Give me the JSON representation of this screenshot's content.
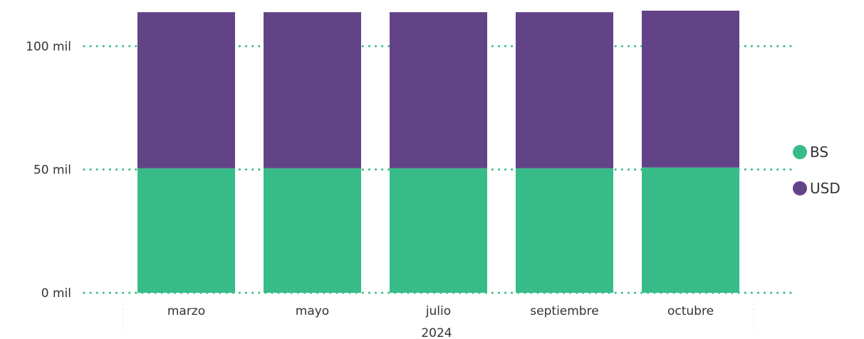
{
  "chart_data": {
    "type": "bar",
    "stacked": true,
    "title": "",
    "xlabel": "",
    "ylabel": "",
    "categories": [
      "marzo",
      "mayo",
      "julio",
      "septiembre",
      "octubre"
    ],
    "year_label": "2024",
    "series": [
      {
        "name": "BS",
        "color": "#37BC89",
        "values": [
          50500,
          50500,
          50500,
          50500,
          50800
        ]
      },
      {
        "name": "USD",
        "color": "#634388",
        "values": [
          63300,
          63300,
          63300,
          63300,
          63600
        ]
      }
    ],
    "ylim": [
      0,
      113000
    ],
    "y_ticks": [
      {
        "value": 0,
        "label": "0 mil"
      },
      {
        "value": 50000,
        "label": "50 mil"
      },
      {
        "value": 100000,
        "label": "100 mil"
      }
    ],
    "grid": "horizontal-dotted",
    "grid_color": "#37BC89",
    "legend_position": "right"
  }
}
